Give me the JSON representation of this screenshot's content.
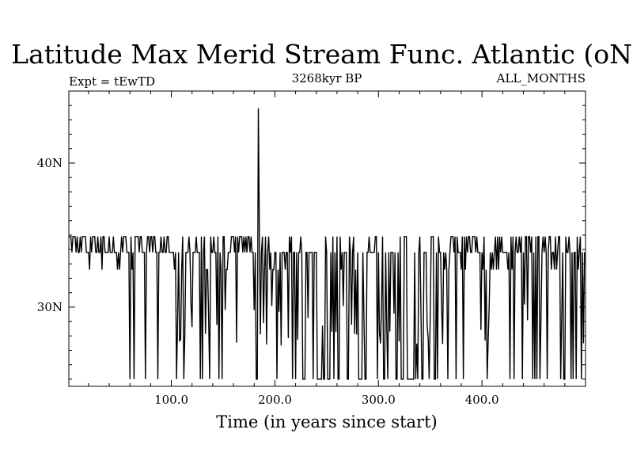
{
  "chart_data": {
    "type": "line",
    "title": "Latitude Max Merid Stream Func. Atlantic (oN)",
    "subtitle_left": "Expt = tEwTD",
    "subtitle_center": "3268kyr BP",
    "subtitle_right": "ALL_MONTHS",
    "xlabel": "Time (in years since start)",
    "ylabel": "",
    "xlim": [
      1,
      500
    ],
    "ylim": [
      24.5,
      45
    ],
    "grid": false,
    "x_ticks": [
      {
        "value": 100,
        "label": "100.0"
      },
      {
        "value": 200,
        "label": "200.0"
      },
      {
        "value": 300,
        "label": "300.0"
      },
      {
        "value": 400,
        "label": "400.0"
      }
    ],
    "y_ticks": [
      {
        "value": 30,
        "label": "30N"
      },
      {
        "value": 40,
        "label": "40N"
      }
    ],
    "series": [
      {
        "levels": [
          34.9,
          33.8,
          32.6,
          30.2,
          26.0,
          25.0,
          43.8
        ],
        "segments": [
          [
            1,
            30,
            33.8,
            0.55,
            0.1,
            0.08,
            0.04,
            0.04,
            0.0
          ],
          [
            30,
            62,
            33.8,
            0.25,
            0.45,
            0.08,
            0.03,
            0.05,
            0.0
          ],
          [
            62,
            105,
            33.8,
            0.4,
            0.25,
            0.08,
            0.03,
            0.03,
            0.0
          ],
          [
            105,
            150,
            33.8,
            0.2,
            0.2,
            0.08,
            0.12,
            0.22,
            0.0
          ],
          [
            150,
            180,
            33.8,
            0.45,
            0.25,
            0.08,
            0.05,
            0.05,
            0.0
          ],
          [
            180,
            240,
            33.8,
            0.15,
            0.15,
            0.08,
            0.14,
            0.25,
            0.0
          ],
          [
            240,
            345,
            33.8,
            0.12,
            0.1,
            0.05,
            0.16,
            0.35,
            0.0
          ],
          [
            345,
            395,
            33.8,
            0.25,
            0.2,
            0.1,
            0.12,
            0.15,
            0.0
          ],
          [
            395,
            475,
            33.8,
            0.3,
            0.25,
            0.15,
            0.08,
            0.1,
            0.0
          ],
          [
            475,
            500,
            33.8,
            0.2,
            0.15,
            0.1,
            0.1,
            0.25,
            0.0
          ]
        ],
        "spikes": [
          {
            "x": 184,
            "y": 43.8
          },
          {
            "x": 185,
            "y": 35.2
          }
        ]
      }
    ]
  }
}
